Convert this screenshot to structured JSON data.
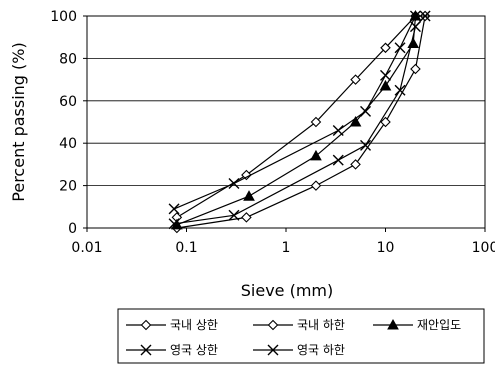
{
  "chart_data": {
    "type": "line",
    "xscale": "log",
    "xlim": [
      0.01,
      100
    ],
    "ylim": [
      0,
      100
    ],
    "grid": "horizontal",
    "legend_position": "bottom",
    "xlabel": "Sieve (mm)",
    "ylabel": "Percent passing (%)",
    "xticks": [
      "0.01",
      "0.1",
      "1",
      "10",
      "100"
    ],
    "yticks": [
      "0",
      "20",
      "40",
      "60",
      "80",
      "100"
    ],
    "series": [
      {
        "name": "국내 상한",
        "marker": "diamond",
        "x": [
          0.08,
          0.4,
          2,
          5,
          10,
          20,
          25
        ],
        "y": [
          5,
          25,
          50,
          70,
          85,
          100,
          100
        ]
      },
      {
        "name": "국내 하한",
        "marker": "diamond",
        "x": [
          0.08,
          0.4,
          2,
          5,
          10,
          20,
          25
        ],
        "y": [
          0,
          5,
          20,
          30,
          50,
          75,
          100
        ]
      },
      {
        "name": "재안입도",
        "marker": "triangle",
        "x": [
          0.08,
          0.425,
          2,
          5,
          10,
          19,
          20
        ],
        "y": [
          1.5,
          15,
          34,
          50,
          67,
          87,
          100
        ]
      },
      {
        "name": "영국 상한",
        "marker": "x",
        "x": [
          0.075,
          0.3,
          3.35,
          6.3,
          10,
          14,
          20
        ],
        "y": [
          9,
          21,
          46,
          55,
          72,
          85,
          100
        ]
      },
      {
        "name": "영국 하한",
        "marker": "x",
        "x": [
          0.075,
          0.3,
          3.35,
          6.3,
          14,
          20,
          25
        ],
        "y": [
          2,
          6,
          32,
          39,
          65,
          95,
          100
        ]
      }
    ]
  }
}
